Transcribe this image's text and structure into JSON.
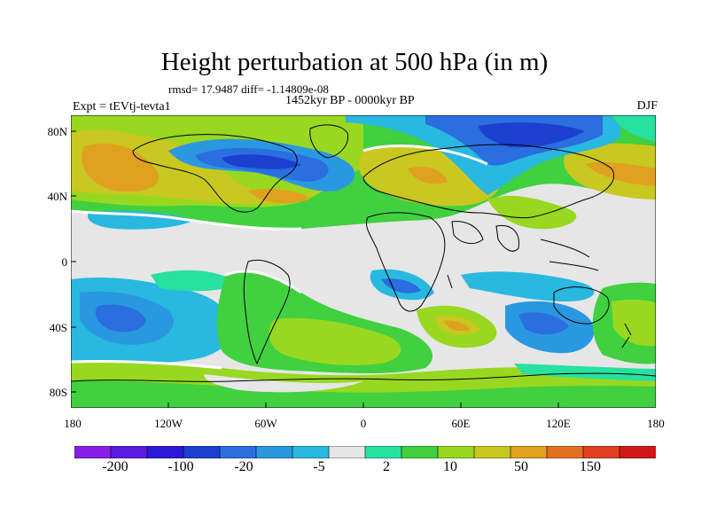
{
  "title": "Height perturbation at 500 hPa (in m)",
  "stats": "rmsd= 17.9487 diff= -1.14809e-08",
  "expt": "Expt = tEVtj-tevta1",
  "period": "1452kyr BP - 0000kyr BP",
  "season": "DJF",
  "y_ticks": [
    "80N",
    "40N",
    "0",
    "40S",
    "80S"
  ],
  "x_ticks": [
    "180",
    "120W",
    "60W",
    "0",
    "60E",
    "120E",
    "180"
  ],
  "colorbar": {
    "colors": [
      "#8a1ee8",
      "#5a1ae0",
      "#2a1ad8",
      "#1c3fd0",
      "#2a6ee0",
      "#2a98e0",
      "#28b8e0",
      "#e6e6e6",
      "#28e0a0",
      "#40d040",
      "#98d820",
      "#c8c820",
      "#e0a020",
      "#e07020",
      "#e04020",
      "#d01818"
    ],
    "labels": [
      "-200",
      "-100",
      "-20",
      "-5",
      "2",
      "10",
      "50",
      "150"
    ]
  },
  "colors": {
    "ocean_neutral": "#e6e6e6",
    "coastline": "#000000",
    "zero_contour": "#ffffff"
  }
}
